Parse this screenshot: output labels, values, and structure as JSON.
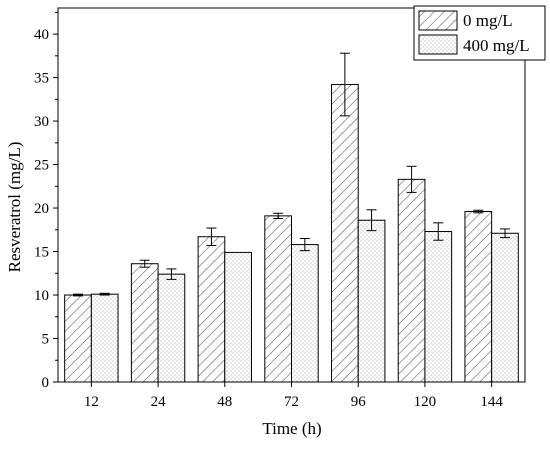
{
  "chart_data": {
    "type": "bar",
    "title": "",
    "xlabel": "Time (h)",
    "ylabel": "Resveratrol (mg/L)",
    "categories": [
      "12",
      "24",
      "48",
      "72",
      "96",
      "120",
      "144"
    ],
    "ylim": [
      0,
      43
    ],
    "yticks": [
      "0",
      "5",
      "10",
      "15",
      "20",
      "25",
      "30",
      "35",
      "40"
    ],
    "grid": false,
    "legend_position": "top-right",
    "series": [
      {
        "name": "0 mg/L",
        "pattern": "diagonal-hatch",
        "values": [
          10.0,
          13.6,
          16.7,
          19.1,
          34.2,
          23.3,
          19.6
        ],
        "errors": [
          0.1,
          0.4,
          1.0,
          0.3,
          3.6,
          1.5,
          0.15
        ]
      },
      {
        "name": "400 mg/L",
        "pattern": "dot-fill",
        "values": [
          10.1,
          12.4,
          14.9,
          15.8,
          18.6,
          17.3,
          17.1
        ],
        "errors": [
          0.1,
          0.6,
          0.0,
          0.7,
          1.2,
          1.0,
          0.5
        ]
      }
    ]
  }
}
